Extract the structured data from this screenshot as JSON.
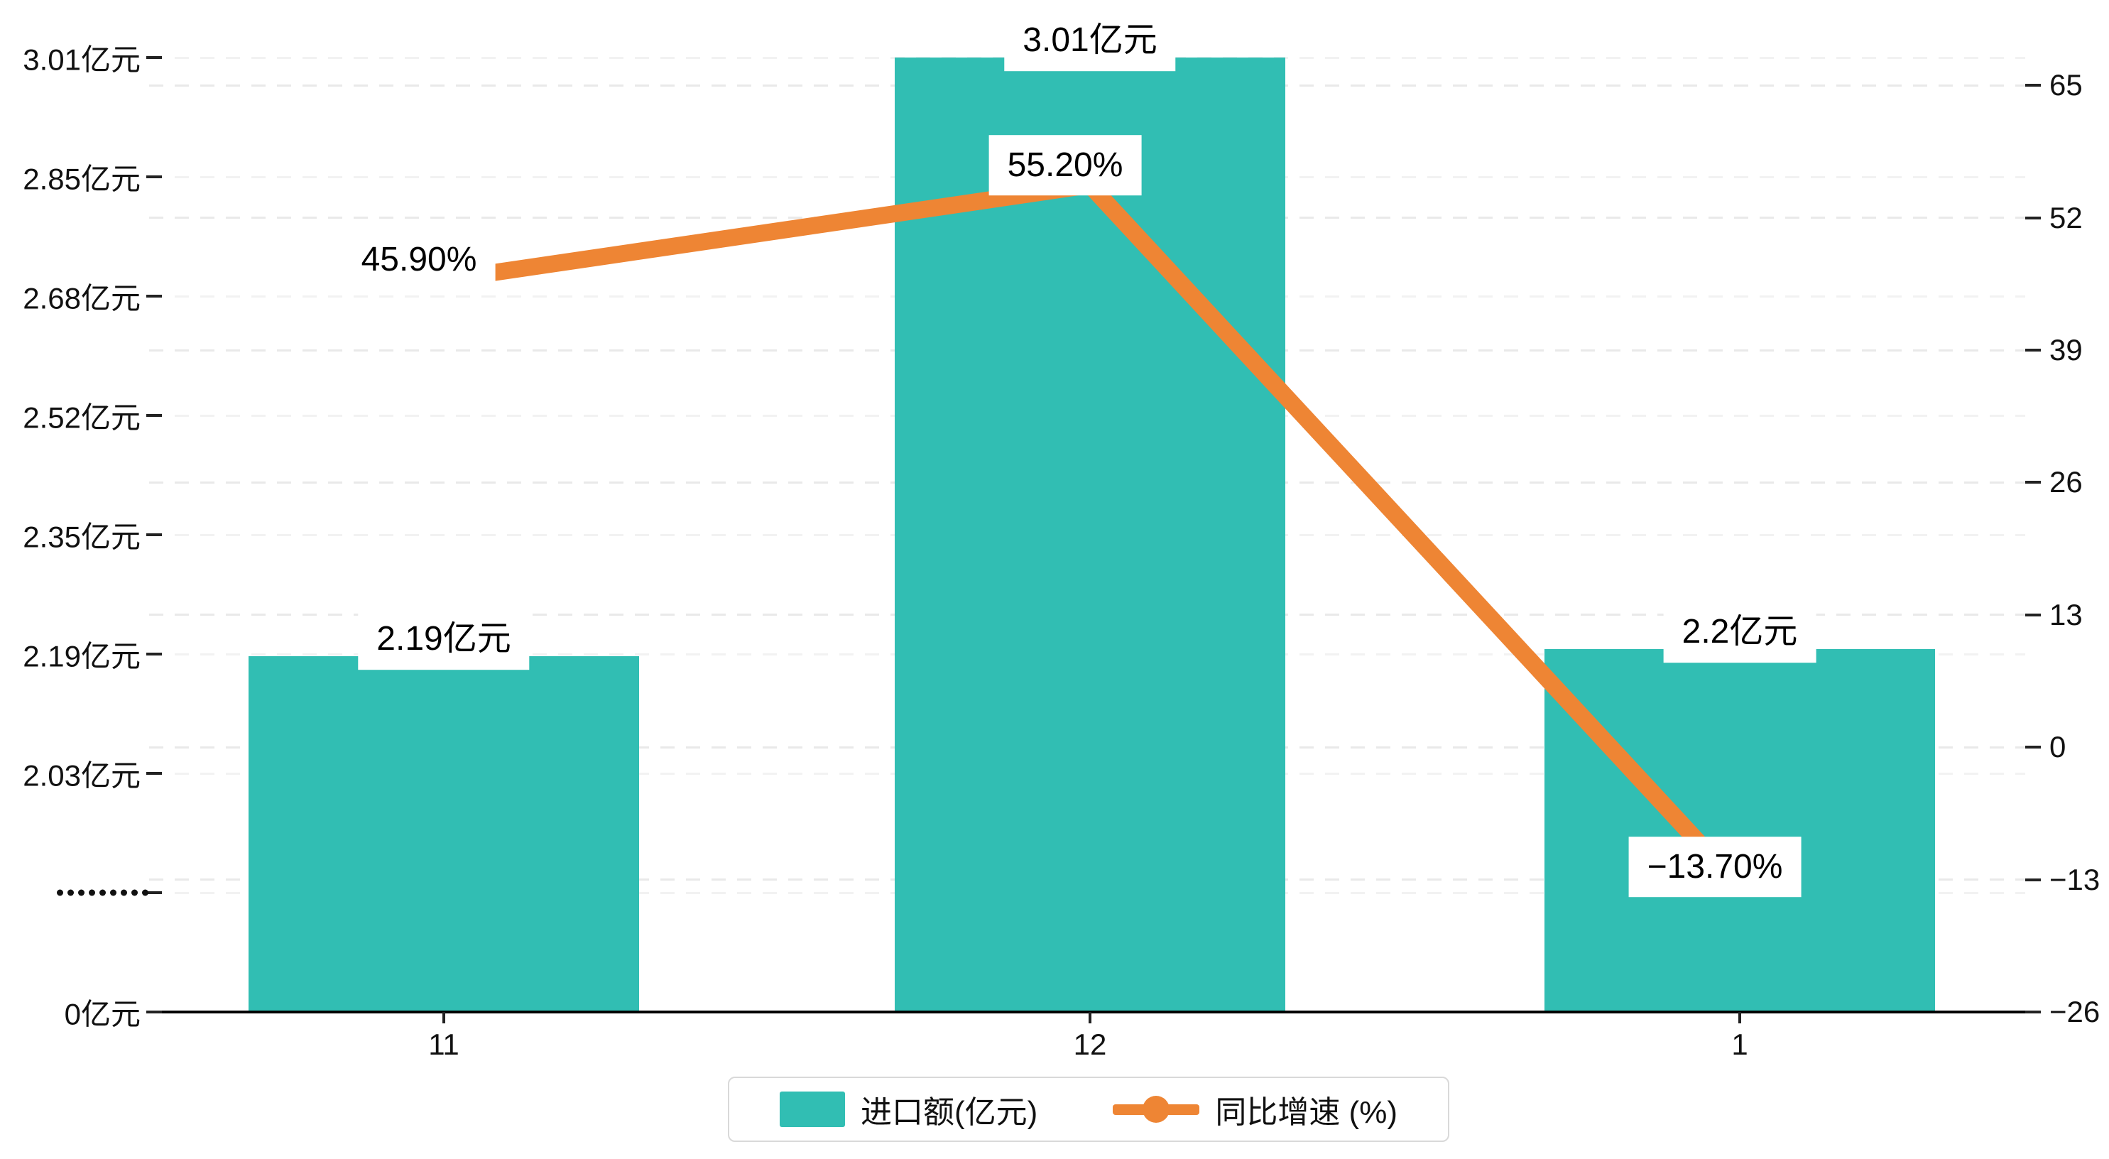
{
  "chart_data": {
    "type": "combo",
    "categories": [
      "11",
      "12",
      "1"
    ],
    "series": [
      {
        "name": "进口额(亿元)",
        "type": "bar",
        "values": [
          2.19,
          3.01,
          2.2
        ],
        "labels": [
          "2.19亿元",
          "3.01亿元",
          "2.2亿元"
        ],
        "color": "#31beb3"
      },
      {
        "name": "同比增速 (%)",
        "type": "line",
        "values": [
          45.9,
          55.2,
          -13.7
        ],
        "labels": [
          "45.90%",
          "55.20%",
          "-13.70%"
        ],
        "color": "#ee8534"
      }
    ],
    "left_axis": {
      "unit": "亿元",
      "tick_labels": [
        "0亿元",
        "·········",
        "2.03亿元",
        "2.19亿元",
        "2.35亿元",
        "2.52亿元",
        "2.68亿元",
        "2.85亿元",
        "3.01亿元"
      ],
      "break_marker_index": 1,
      "scale_anchor_low": 2.03,
      "scale_anchor_high": 3.01
    },
    "right_axis": {
      "unit": "%",
      "tick_labels": [
        "-26",
        "-13",
        "0",
        "13",
        "26",
        "39",
        "52",
        "65"
      ],
      "min": -26,
      "step": 13
    },
    "legend": [
      {
        "label": "进口额(亿元)",
        "marker": "bar"
      },
      {
        "label": "同比增速 (%)",
        "marker": "line-dot"
      }
    ],
    "grid": true,
    "legend_position": "bottom-center",
    "colors": {
      "bar": "#31beb3",
      "line": "#ee8534",
      "axis": "#000000",
      "gridline": "#ededed",
      "label_text": "#000000"
    }
  }
}
